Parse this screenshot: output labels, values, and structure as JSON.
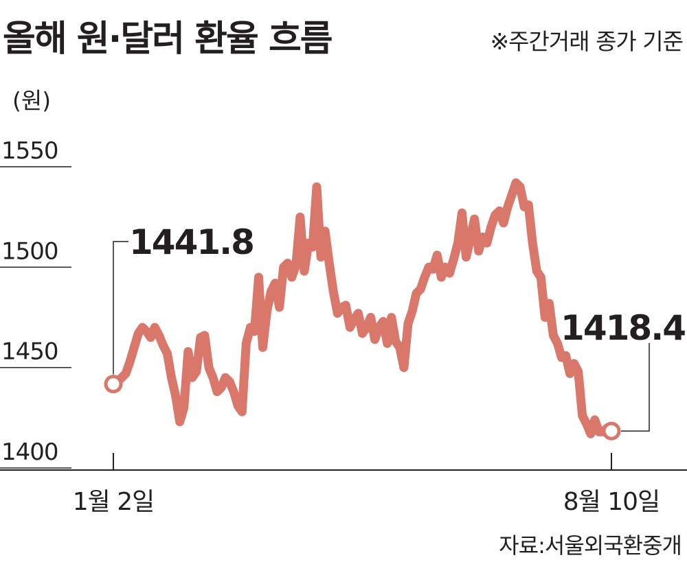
{
  "title": "올해 원·달러 환율 흐름",
  "note": "※주간거래 종가 기준",
  "source": "자료:서울외국환중개",
  "colors": {
    "line": "#d9776a",
    "text": "#231f20",
    "axis": "#231f20"
  },
  "chart_data": {
    "type": "line",
    "title": "올해 원·달러 환율 흐름",
    "ylabel": "(원)",
    "ylim": [
      1400,
      1550
    ],
    "yticks": [
      "1550",
      "1500",
      "1450",
      "1400"
    ],
    "xtick_labels": [
      "1월 2일",
      "8월 10일"
    ],
    "grid": false,
    "legend": "none",
    "annotations": [
      {
        "label": "1441.8",
        "x_index": 0,
        "value": 1441.8
      },
      {
        "label": "1418.4",
        "x_index": "last",
        "value": 1418.4
      }
    ],
    "series": [
      {
        "values": [
          1441.8,
          1443,
          1445,
          1447,
          1453,
          1460,
          1467,
          1470,
          1468,
          1465,
          1470,
          1466,
          1461,
          1457,
          1445,
          1436,
          1423,
          1430,
          1458,
          1445,
          1448,
          1465,
          1466,
          1450,
          1445,
          1438,
          1440,
          1445,
          1443,
          1438,
          1431,
          1428,
          1462,
          1470,
          1468,
          1495,
          1460,
          1478,
          1488,
          1492,
          1480,
          1500,
          1502,
          1495,
          1501,
          1525,
          1498,
          1512,
          1510,
          1540,
          1505,
          1518,
          1502,
          1488,
          1477,
          1480,
          1481,
          1470,
          1474,
          1477,
          1467,
          1470,
          1475,
          1464,
          1470,
          1473,
          1462,
          1475,
          1463,
          1460,
          1450,
          1472,
          1478,
          1487,
          1489,
          1495,
          1500,
          1499,
          1506,
          1495,
          1500,
          1497,
          1504,
          1512,
          1527,
          1505,
          1514,
          1524,
          1508,
          1515,
          1512,
          1520,
          1526,
          1528,
          1522,
          1530,
          1536,
          1542,
          1540,
          1530,
          1531,
          1512,
          1498,
          1495,
          1475,
          1482,
          1466,
          1462,
          1455,
          1456,
          1447,
          1452,
          1448,
          1426,
          1422,
          1417,
          1424,
          1418,
          1418,
          1420,
          1418.4
        ]
      }
    ]
  }
}
